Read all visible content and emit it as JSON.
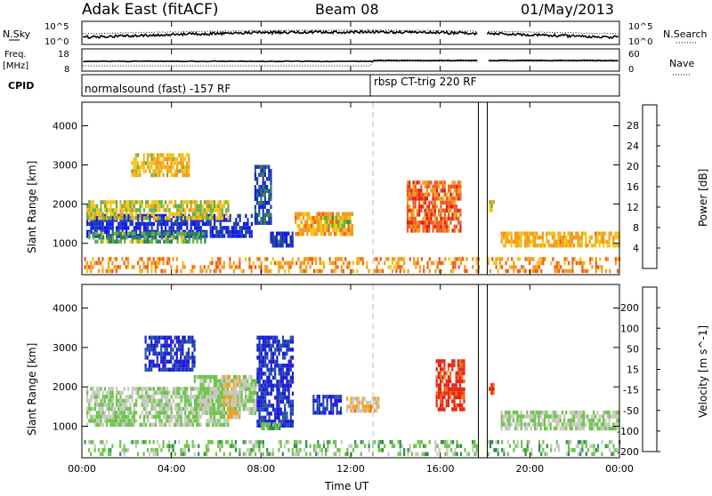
{
  "header": {
    "title": "Adak East (fitACF)",
    "beam": "Beam 08",
    "date": "01/May/2013"
  },
  "top_panels": {
    "nsky_label": "N.Sky",
    "nsearch_label": "N.Search",
    "freq_label": "Freq.",
    "freq_unit": "[MHz]",
    "nave_label": "Nave",
    "cpid_label": "CPID",
    "noise_ticks": [
      "10^5",
      "10^0"
    ],
    "noise_right_ticks": [
      "10^5",
      "10^0"
    ],
    "freq_ticks": [
      "18",
      "8"
    ],
    "nave_ticks": [
      "60",
      "0"
    ],
    "cpid_segments": [
      {
        "label": "normalsound (fast) -157 RF",
        "start_hour": 0
      },
      {
        "label": "rbsp CT-trig 220 RF",
        "start_hour": 13
      }
    ],
    "data_gap_hours": [
      17.7,
      18.1
    ]
  },
  "axes": {
    "xlabel": "Time UT",
    "x_ticks": [
      "00:00",
      "04:00",
      "08:00",
      "12:00",
      "16:00",
      "20:00",
      "00:00"
    ],
    "x_tick_hours": [
      0,
      4,
      8,
      12,
      16,
      20,
      24
    ],
    "ylabel": "Slant Range [km]",
    "y_ticks": [
      "4000",
      "3000",
      "2000",
      "1000"
    ],
    "y_tick_values": [
      4000,
      3000,
      2000,
      1000
    ],
    "ylim": [
      200,
      4600
    ],
    "xlim": [
      0,
      24
    ]
  },
  "colors": {
    "power": [
      "#0a1ae6",
      "#1f3fa0",
      "#2e7f5a",
      "#5fb04a",
      "#f0c419",
      "#f39a1a",
      "#ef5a1a",
      "#e21b12"
    ],
    "velocity": [
      "#1c19d8",
      "#2550a8",
      "#2f8a4e",
      "#6cc44a",
      "#c8c8c0",
      "#f5a21c",
      "#f06b17",
      "#e6230f"
    ]
  },
  "chart_data": [
    {
      "type": "heatmap",
      "panel": "power",
      "colorbar_label": "Power [dB]",
      "colorbar_ticks": [
        "28",
        "24",
        "20",
        "16",
        "12",
        "8",
        "4"
      ],
      "colorbar_tick_values": [
        28,
        24,
        20,
        16,
        12,
        8,
        4
      ],
      "range": [
        0,
        30
      ],
      "regions": [
        {
          "t0": 0.2,
          "t1": 7.6,
          "r0": 1200,
          "r1": 1750,
          "level": 27
        },
        {
          "t0": 0.2,
          "t1": 6.5,
          "r0": 1650,
          "r1": 2100,
          "level": 14
        },
        {
          "t0": 0.3,
          "t1": 5.5,
          "r0": 1050,
          "r1": 1300,
          "level": 18
        },
        {
          "t0": 7.7,
          "t1": 8.4,
          "r0": 1500,
          "r1": 3000,
          "level": 24
        },
        {
          "t0": 2.2,
          "t1": 4.8,
          "r0": 2700,
          "r1": 3300,
          "level": 12
        },
        {
          "t0": 8.4,
          "t1": 9.4,
          "r0": 950,
          "r1": 1300,
          "level": 26
        },
        {
          "t0": 9.5,
          "t1": 12.1,
          "r0": 1250,
          "r1": 1800,
          "level": 10
        },
        {
          "t0": 10.8,
          "t1": 12.0,
          "r0": 1450,
          "r1": 1700,
          "level": 16
        },
        {
          "t0": 14.5,
          "t1": 16.9,
          "r0": 1300,
          "r1": 2600,
          "level": 6
        },
        {
          "t0": 18.0,
          "t1": 18.4,
          "r0": 1800,
          "r1": 2100,
          "level": 14
        },
        {
          "t0": 18.7,
          "t1": 24.0,
          "r0": 950,
          "r1": 1300,
          "level": 11
        },
        {
          "t0": 0.1,
          "t1": 24.0,
          "r0": 250,
          "r1": 650,
          "level": 9
        }
      ]
    },
    {
      "type": "heatmap",
      "panel": "velocity",
      "colorbar_label": "Velocity [m s^-1]",
      "colorbar_ticks": [
        "200",
        "100",
        "50",
        "15",
        "-15",
        "-50",
        "-100",
        "-200"
      ],
      "colorbar_tick_values": [
        200,
        100,
        50,
        15,
        -15,
        -50,
        -100,
        -200
      ],
      "range": [
        -250,
        250
      ],
      "regions": [
        {
          "t0": 0.2,
          "t1": 6.5,
          "r0": 1000,
          "r1": 2000,
          "level": 0
        },
        {
          "t0": 2.8,
          "t1": 5.0,
          "r0": 2400,
          "r1": 3300,
          "level": 200
        },
        {
          "t0": 5.0,
          "t1": 7.8,
          "r0": 1300,
          "r1": 2300,
          "level": 0
        },
        {
          "t0": 6.3,
          "t1": 7.0,
          "r0": 1200,
          "r1": 2300,
          "level": -60
        },
        {
          "t0": 7.8,
          "t1": 9.4,
          "r0": 1000,
          "r1": 3300,
          "level": 200
        },
        {
          "t0": 8.0,
          "t1": 8.8,
          "r0": 900,
          "r1": 1100,
          "level": 60
        },
        {
          "t0": 10.3,
          "t1": 11.6,
          "r0": 1300,
          "r1": 1800,
          "level": 200
        },
        {
          "t0": 11.8,
          "t1": 13.2,
          "r0": 1350,
          "r1": 1750,
          "level": -70
        },
        {
          "t0": 15.8,
          "t1": 17.1,
          "r0": 1400,
          "r1": 2700,
          "level": -220
        },
        {
          "t0": 17.9,
          "t1": 18.4,
          "r0": 1800,
          "r1": 2100,
          "level": -220
        },
        {
          "t0": 18.7,
          "t1": 24.0,
          "r0": 900,
          "r1": 1400,
          "level": 0
        },
        {
          "t0": 0.1,
          "t1": 24.0,
          "r0": 250,
          "r1": 650,
          "level": 30
        }
      ]
    }
  ]
}
